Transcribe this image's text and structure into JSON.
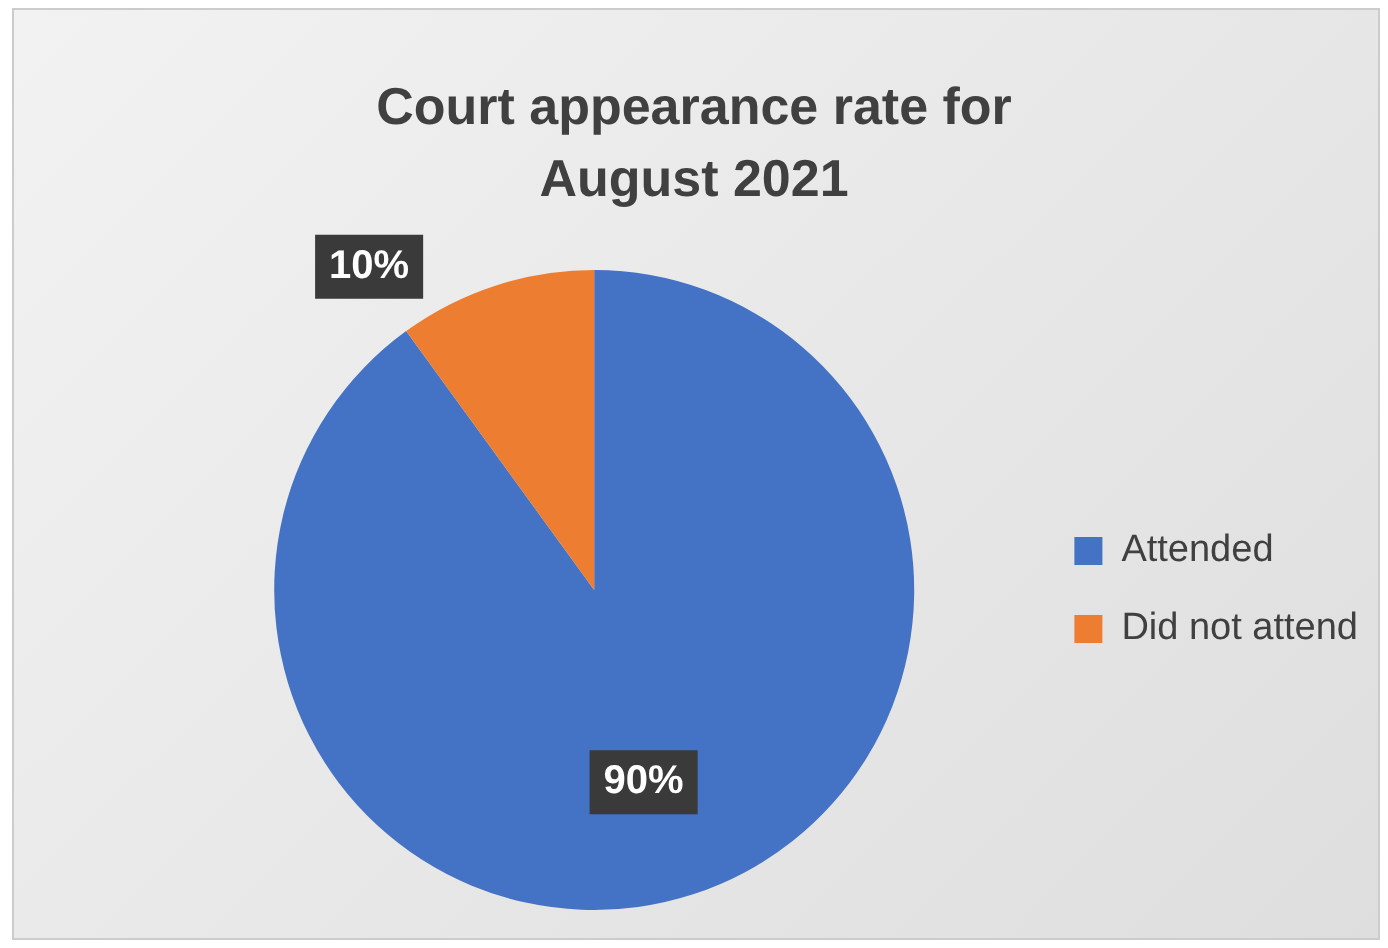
{
  "chart_data": {
    "type": "pie",
    "title": "Court appearance rate for August 2021",
    "categories": [
      "Attended",
      "Did not attend"
    ],
    "values": [
      90,
      10
    ],
    "colors": [
      "#4472c4",
      "#ed7d31"
    ],
    "value_labels": [
      "90%",
      "10%"
    ],
    "legend": "right"
  }
}
